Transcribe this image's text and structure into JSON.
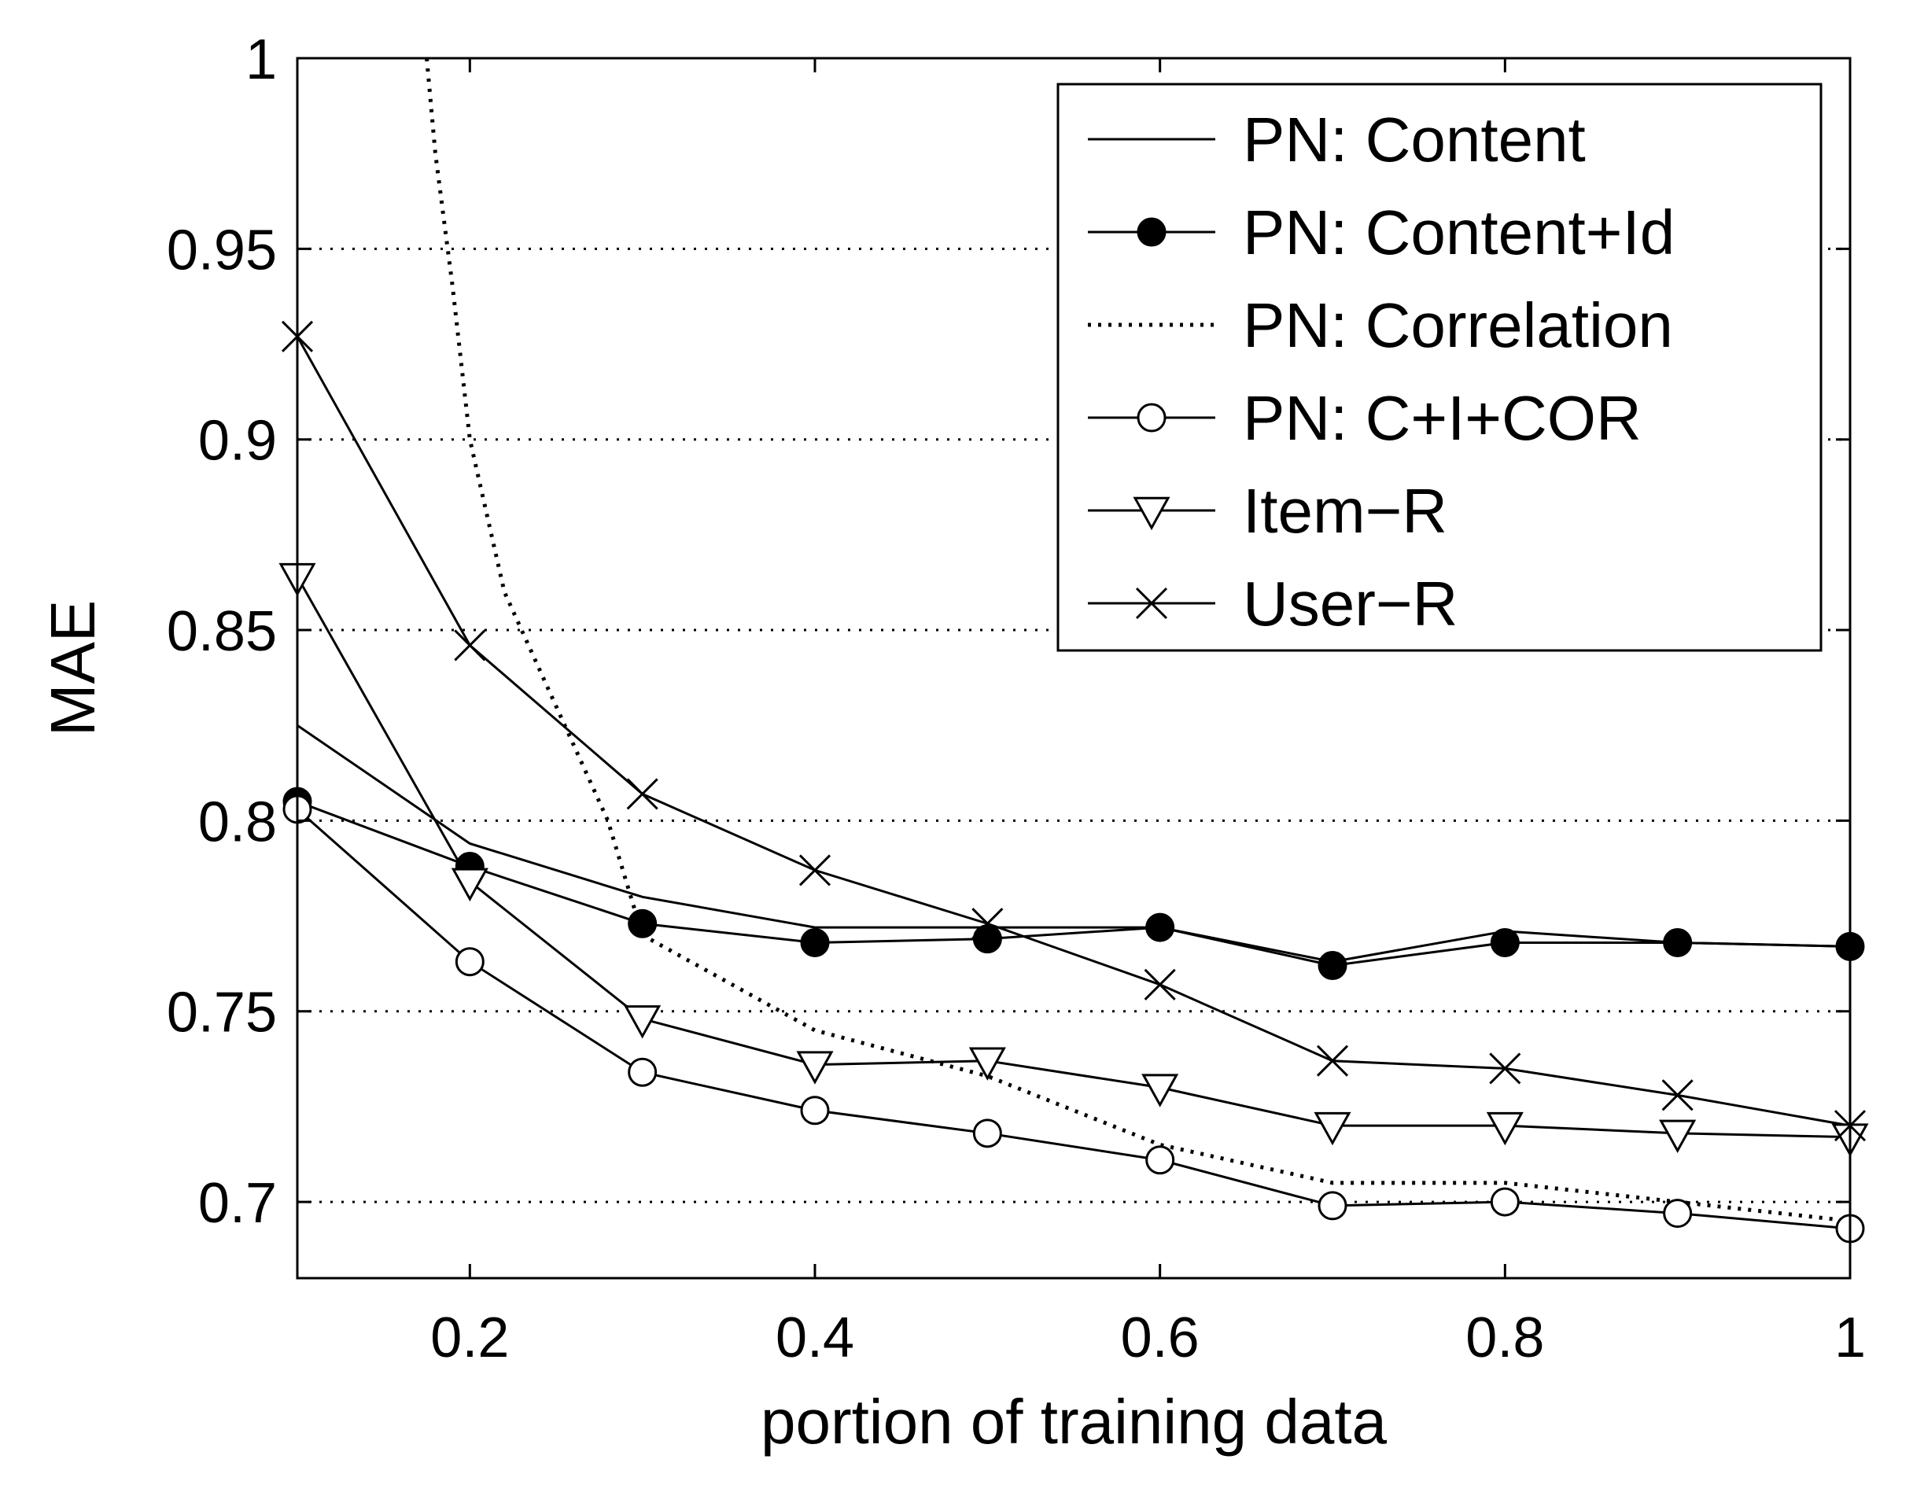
{
  "chart_data": {
    "type": "line",
    "title": "",
    "xlabel": "portion of training data",
    "ylabel": "MAE",
    "xlim": [
      0.1,
      1.0
    ],
    "ylim": [
      0.68,
      1.0
    ],
    "xticks": [
      0.2,
      0.4,
      0.6,
      0.8,
      1.0
    ],
    "xtick_labels": [
      "0.2",
      "0.4",
      "0.6",
      "0.8",
      "1"
    ],
    "yticks": [
      0.7,
      0.75,
      0.8,
      0.85,
      0.9,
      0.95,
      1.0
    ],
    "ytick_labels": [
      "0.7",
      "0.75",
      "0.8",
      "0.85",
      "0.9",
      "0.95",
      "1"
    ],
    "grid": "horizontal-dotted",
    "legend_position": "top-right",
    "series": [
      {
        "name": "PN: Content",
        "line": "solid",
        "marker": "none",
        "x": [
          0.1,
          0.2,
          0.3,
          0.4,
          0.5,
          0.6,
          0.7,
          0.8,
          0.9,
          1.0
        ],
        "values": [
          0.825,
          0.794,
          0.78,
          0.772,
          0.772,
          0.772,
          0.763,
          0.771,
          0.768,
          0.767
        ]
      },
      {
        "name": "PN: Content+Id",
        "line": "solid",
        "marker": "filled-circle",
        "x": [
          0.1,
          0.2,
          0.3,
          0.4,
          0.5,
          0.6,
          0.7,
          0.8,
          0.9,
          1.0
        ],
        "values": [
          0.805,
          0.788,
          0.773,
          0.768,
          0.769,
          0.772,
          0.762,
          0.768,
          0.768,
          0.767
        ]
      },
      {
        "name": "PN: Correlation",
        "line": "dotted",
        "marker": "none",
        "x": [
          0.175,
          0.18,
          0.19,
          0.2,
          0.22,
          0.25,
          0.28,
          0.3,
          0.4,
          0.5,
          0.6,
          0.7,
          0.8,
          0.9,
          1.0
        ],
        "values": [
          1.0,
          0.975,
          0.94,
          0.9,
          0.86,
          0.83,
          0.8,
          0.77,
          0.745,
          0.733,
          0.715,
          0.705,
          0.705,
          0.7,
          0.695
        ]
      },
      {
        "name": "PN: C+I+COR",
        "line": "solid",
        "marker": "open-circle",
        "x": [
          0.1,
          0.2,
          0.3,
          0.4,
          0.5,
          0.6,
          0.7,
          0.8,
          0.9,
          1.0
        ],
        "values": [
          0.803,
          0.763,
          0.734,
          0.724,
          0.718,
          0.711,
          0.699,
          0.7,
          0.697,
          0.693
        ]
      },
      {
        "name": "Item−R",
        "line": "solid",
        "marker": "open-triangle-down",
        "x": [
          0.1,
          0.2,
          0.3,
          0.4,
          0.5,
          0.6,
          0.7,
          0.8,
          0.9,
          1.0
        ],
        "values": [
          0.864,
          0.784,
          0.748,
          0.736,
          0.737,
          0.73,
          0.72,
          0.72,
          0.718,
          0.717
        ]
      },
      {
        "name": "User−R",
        "line": "solid",
        "marker": "x",
        "x": [
          0.1,
          0.2,
          0.3,
          0.4,
          0.5,
          0.6,
          0.7,
          0.8,
          0.9,
          1.0
        ],
        "values": [
          0.927,
          0.846,
          0.807,
          0.787,
          0.773,
          0.757,
          0.737,
          0.735,
          0.728,
          0.72
        ]
      }
    ]
  }
}
